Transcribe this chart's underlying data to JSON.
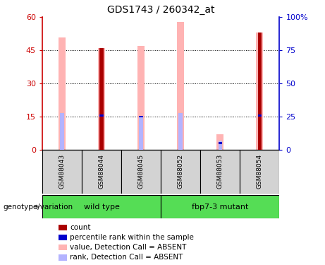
{
  "title": "GDS1743 / 260342_at",
  "samples": [
    "GSM88043",
    "GSM88044",
    "GSM88045",
    "GSM88052",
    "GSM88053",
    "GSM88054"
  ],
  "wild_type_indices": [
    0,
    1,
    2
  ],
  "mutant_indices": [
    3,
    4,
    5
  ],
  "wild_type_label": "wild type",
  "mutant_label": "fbp7-3 mutant",
  "pink_bars": [
    51,
    46,
    47,
    58,
    7,
    53
  ],
  "dark_red_bars": [
    0,
    46,
    0,
    0,
    0,
    53
  ],
  "blue_bars": [
    0,
    15.5,
    15,
    0,
    3,
    15.5
  ],
  "light_blue_bars": [
    16.5,
    0,
    15,
    16.5,
    4,
    0
  ],
  "ylim": [
    0,
    60
  ],
  "yticks_left": [
    0,
    15,
    30,
    45,
    60
  ],
  "yticks_right": [
    0,
    25,
    50,
    75,
    100
  ],
  "ytick_labels_left": [
    "0",
    "15",
    "30",
    "45",
    "60"
  ],
  "ytick_labels_right": [
    "0",
    "25",
    "50",
    "75",
    "100%"
  ],
  "left_axis_color": "#cc0000",
  "right_axis_color": "#0000cc",
  "group_label": "genotype/variation",
  "pink_bar_width": 0.18,
  "narrow_bar_width": 0.1,
  "bar_color_darkred": "#aa0000",
  "bar_color_blue": "#0000cc",
  "bar_color_pink": "#ffb3b3",
  "bar_color_lightblue": "#b3b3ff",
  "sample_box_color": "#d3d3d3",
  "group_box_color": "#55dd55",
  "legend_items": [
    {
      "label": "count",
      "color": "#aa0000"
    },
    {
      "label": "percentile rank within the sample",
      "color": "#0000cc"
    },
    {
      "label": "value, Detection Call = ABSENT",
      "color": "#ffb3b3"
    },
    {
      "label": "rank, Detection Call = ABSENT",
      "color": "#b3b3ff"
    }
  ]
}
